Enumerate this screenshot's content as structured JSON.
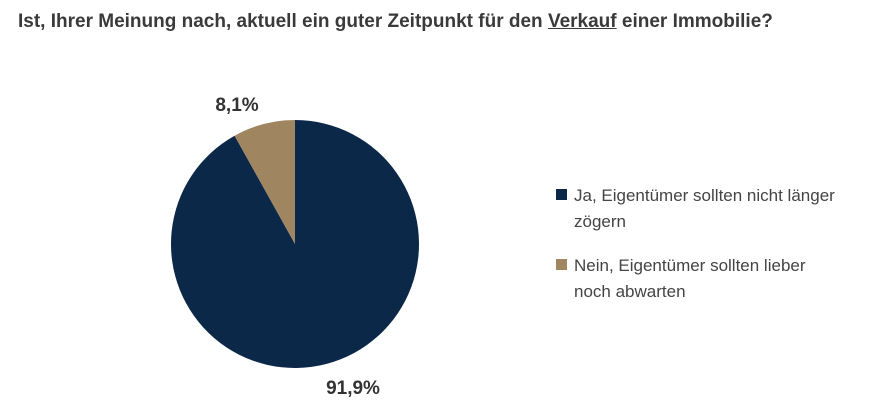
{
  "title": {
    "part1": "Ist, Ihrer Meinung nach, aktuell ein guter Zeitpunkt für den ",
    "underlined": "Verkauf",
    "part2": " einer Immobilie?"
  },
  "chart_data": {
    "type": "pie",
    "title": "Ist, Ihrer Meinung nach, aktuell ein guter Zeitpunkt für den Verkauf einer Immobilie?",
    "legend_placement": "right",
    "slices": [
      {
        "label": "Ja, Eigentümer sollten nicht länger zögern",
        "value": 91.9,
        "value_label": "91,9%",
        "color": "#0c2849"
      },
      {
        "label": "Nein, Eigentümer sollten lieber noch abwarten",
        "value": 8.1,
        "value_label": "8,1%",
        "color": "#a08660"
      }
    ]
  }
}
